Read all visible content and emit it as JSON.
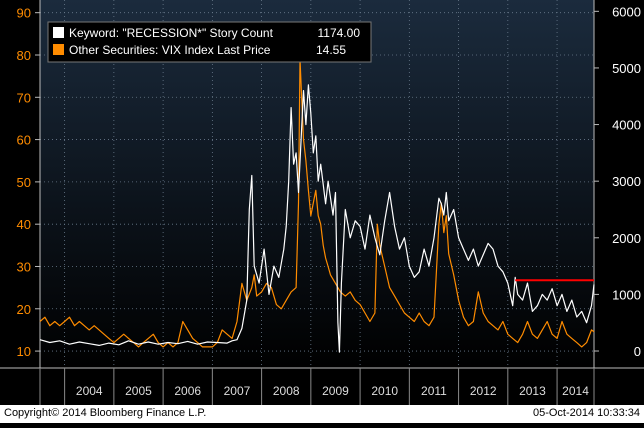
{
  "chart_data": {
    "type": "line",
    "copyright": "Copyright© 2014 Bloomberg Finance L.P.",
    "timestamp": "05-Oct-2014 10:33:34",
    "x_tick_labels": [
      "2004",
      "2005",
      "2006",
      "2007",
      "2008",
      "2009",
      "2010",
      "2011",
      "2012",
      "2013",
      "2014"
    ],
    "xlim": [
      2003.5,
      2014.75
    ],
    "left_axis": {
      "ticks": [
        10,
        20,
        30,
        40,
        50,
        60,
        70,
        80,
        90
      ],
      "ylim": [
        6,
        93
      ],
      "color": "#ff8c00"
    },
    "right_axis": {
      "ticks": [
        0,
        1000,
        2000,
        3000,
        4000,
        5000,
        6000
      ],
      "ylim": [
        -300,
        6200
      ],
      "color": "#ffffff"
    },
    "legend": {
      "location": "top-left",
      "entries": [
        {
          "label": "Keyword: \"RECESSION*\" Story Count",
          "value": "1174.00",
          "color": "#ffffff"
        },
        {
          "label": "Other Securities: VIX Index Last Price",
          "value": "14.55",
          "color": "#ff8c00"
        }
      ]
    },
    "series": [
      {
        "name": "Keyword: \"RECESSION*\" Story Count",
        "axis": "right",
        "color": "#ffffff",
        "points": [
          [
            2003.5,
            200
          ],
          [
            2003.7,
            150
          ],
          [
            2003.9,
            180
          ],
          [
            2004.1,
            120
          ],
          [
            2004.3,
            160
          ],
          [
            2004.5,
            130
          ],
          [
            2004.7,
            100
          ],
          [
            2004.9,
            140
          ],
          [
            2005.1,
            110
          ],
          [
            2005.3,
            180
          ],
          [
            2005.5,
            120
          ],
          [
            2005.7,
            160
          ],
          [
            2005.9,
            120
          ],
          [
            2006.1,
            150
          ],
          [
            2006.3,
            130
          ],
          [
            2006.5,
            170
          ],
          [
            2006.7,
            120
          ],
          [
            2006.9,
            160
          ],
          [
            2007.1,
            150
          ],
          [
            2007.3,
            140
          ],
          [
            2007.4,
            180
          ],
          [
            2007.5,
            200
          ],
          [
            2007.6,
            400
          ],
          [
            2007.7,
            900
          ],
          [
            2007.75,
            2500
          ],
          [
            2007.8,
            3100
          ],
          [
            2007.85,
            1500
          ],
          [
            2007.95,
            1200
          ],
          [
            2008.05,
            1800
          ],
          [
            2008.15,
            1000
          ],
          [
            2008.25,
            1500
          ],
          [
            2008.35,
            1300
          ],
          [
            2008.45,
            1800
          ],
          [
            2008.5,
            2200
          ],
          [
            2008.55,
            3000
          ],
          [
            2008.6,
            4300
          ],
          [
            2008.65,
            3300
          ],
          [
            2008.7,
            3500
          ],
          [
            2008.75,
            2800
          ],
          [
            2008.8,
            3700
          ],
          [
            2008.85,
            4600
          ],
          [
            2008.9,
            4000
          ],
          [
            2008.95,
            4700
          ],
          [
            2009.0,
            4200
          ],
          [
            2009.05,
            3500
          ],
          [
            2009.1,
            3800
          ],
          [
            2009.15,
            3000
          ],
          [
            2009.2,
            3300
          ],
          [
            2009.3,
            2600
          ],
          [
            2009.35,
            3000
          ],
          [
            2009.45,
            2400
          ],
          [
            2009.5,
            2800
          ],
          [
            2009.55,
            500
          ],
          [
            2009.58,
            -20
          ],
          [
            2009.62,
            1200
          ],
          [
            2009.7,
            2500
          ],
          [
            2009.8,
            2000
          ],
          [
            2009.9,
            2300
          ],
          [
            2010.0,
            2200
          ],
          [
            2010.1,
            1800
          ],
          [
            2010.2,
            2400
          ],
          [
            2010.3,
            2000
          ],
          [
            2010.4,
            1700
          ],
          [
            2010.5,
            2300
          ],
          [
            2010.6,
            2800
          ],
          [
            2010.7,
            2200
          ],
          [
            2010.8,
            1800
          ],
          [
            2010.9,
            2000
          ],
          [
            2011.0,
            1500
          ],
          [
            2011.1,
            1300
          ],
          [
            2011.2,
            1400
          ],
          [
            2011.3,
            1800
          ],
          [
            2011.4,
            1500
          ],
          [
            2011.5,
            2000
          ],
          [
            2011.6,
            2700
          ],
          [
            2011.65,
            2600
          ],
          [
            2011.7,
            2400
          ],
          [
            2011.75,
            2800
          ],
          [
            2011.8,
            2300
          ],
          [
            2011.9,
            2500
          ],
          [
            2012.0,
            2000
          ],
          [
            2012.1,
            1800
          ],
          [
            2012.2,
            1600
          ],
          [
            2012.3,
            1800
          ],
          [
            2012.4,
            1500
          ],
          [
            2012.5,
            1700
          ],
          [
            2012.6,
            1900
          ],
          [
            2012.7,
            1800
          ],
          [
            2012.8,
            1500
          ],
          [
            2012.9,
            1400
          ],
          [
            2013.0,
            1200
          ],
          [
            2013.1,
            800
          ],
          [
            2013.15,
            1300
          ],
          [
            2013.2,
            1000
          ],
          [
            2013.3,
            900
          ],
          [
            2013.4,
            1200
          ],
          [
            2013.5,
            700
          ],
          [
            2013.6,
            800
          ],
          [
            2013.7,
            1000
          ],
          [
            2013.8,
            900
          ],
          [
            2013.9,
            1100
          ],
          [
            2014.0,
            800
          ],
          [
            2014.1,
            1000
          ],
          [
            2014.2,
            700
          ],
          [
            2014.3,
            900
          ],
          [
            2014.4,
            600
          ],
          [
            2014.5,
            700
          ],
          [
            2014.6,
            500
          ],
          [
            2014.7,
            800
          ],
          [
            2014.75,
            1174
          ]
        ]
      },
      {
        "name": "Other Securities: VIX Index Last Price",
        "axis": "left",
        "color": "#ff8c00",
        "points": [
          [
            2003.5,
            17
          ],
          [
            2003.6,
            18
          ],
          [
            2003.7,
            16
          ],
          [
            2003.8,
            17
          ],
          [
            2003.9,
            16
          ],
          [
            2004.0,
            17
          ],
          [
            2004.1,
            18
          ],
          [
            2004.2,
            16
          ],
          [
            2004.3,
            17
          ],
          [
            2004.4,
            16
          ],
          [
            2004.5,
            15
          ],
          [
            2004.6,
            16
          ],
          [
            2004.7,
            15
          ],
          [
            2004.8,
            14
          ],
          [
            2004.9,
            13
          ],
          [
            2005.0,
            12
          ],
          [
            2005.1,
            13
          ],
          [
            2005.2,
            14
          ],
          [
            2005.3,
            13
          ],
          [
            2005.4,
            12
          ],
          [
            2005.5,
            11
          ],
          [
            2005.6,
            12
          ],
          [
            2005.7,
            13
          ],
          [
            2005.8,
            14
          ],
          [
            2005.9,
            12
          ],
          [
            2006.0,
            11
          ],
          [
            2006.1,
            12
          ],
          [
            2006.2,
            11
          ],
          [
            2006.3,
            12
          ],
          [
            2006.4,
            17
          ],
          [
            2006.5,
            15
          ],
          [
            2006.6,
            13
          ],
          [
            2006.7,
            12
          ],
          [
            2006.8,
            11
          ],
          [
            2006.9,
            11
          ],
          [
            2007.0,
            11
          ],
          [
            2007.1,
            12
          ],
          [
            2007.2,
            15
          ],
          [
            2007.3,
            14
          ],
          [
            2007.4,
            13
          ],
          [
            2007.5,
            17
          ],
          [
            2007.6,
            26
          ],
          [
            2007.7,
            22
          ],
          [
            2007.8,
            25
          ],
          [
            2007.85,
            28
          ],
          [
            2007.9,
            23
          ],
          [
            2008.0,
            24
          ],
          [
            2008.1,
            26
          ],
          [
            2008.2,
            25
          ],
          [
            2008.3,
            21
          ],
          [
            2008.4,
            20
          ],
          [
            2008.5,
            22
          ],
          [
            2008.6,
            24
          ],
          [
            2008.7,
            25
          ],
          [
            2008.75,
            45
          ],
          [
            2008.78,
            79
          ],
          [
            2008.82,
            68
          ],
          [
            2008.85,
            60
          ],
          [
            2008.9,
            55
          ],
          [
            2008.95,
            48
          ],
          [
            2009.0,
            42
          ],
          [
            2009.05,
            45
          ],
          [
            2009.1,
            48
          ],
          [
            2009.15,
            42
          ],
          [
            2009.2,
            40
          ],
          [
            2009.25,
            35
          ],
          [
            2009.3,
            32
          ],
          [
            2009.35,
            30
          ],
          [
            2009.4,
            28
          ],
          [
            2009.5,
            26
          ],
          [
            2009.6,
            24
          ],
          [
            2009.7,
            23
          ],
          [
            2009.8,
            24
          ],
          [
            2009.9,
            22
          ],
          [
            2010.0,
            21
          ],
          [
            2010.1,
            19
          ],
          [
            2010.2,
            17
          ],
          [
            2010.3,
            19
          ],
          [
            2010.35,
            40
          ],
          [
            2010.4,
            35
          ],
          [
            2010.5,
            30
          ],
          [
            2010.6,
            25
          ],
          [
            2010.7,
            23
          ],
          [
            2010.8,
            21
          ],
          [
            2010.9,
            19
          ],
          [
            2011.0,
            18
          ],
          [
            2011.1,
            17
          ],
          [
            2011.2,
            19
          ],
          [
            2011.3,
            17
          ],
          [
            2011.4,
            16
          ],
          [
            2011.5,
            18
          ],
          [
            2011.6,
            40
          ],
          [
            2011.65,
            45
          ],
          [
            2011.7,
            38
          ],
          [
            2011.75,
            42
          ],
          [
            2011.8,
            33
          ],
          [
            2011.9,
            28
          ],
          [
            2012.0,
            22
          ],
          [
            2012.1,
            18
          ],
          [
            2012.2,
            16
          ],
          [
            2012.3,
            17
          ],
          [
            2012.4,
            24
          ],
          [
            2012.5,
            19
          ],
          [
            2012.6,
            17
          ],
          [
            2012.7,
            16
          ],
          [
            2012.8,
            15
          ],
          [
            2012.9,
            17
          ],
          [
            2013.0,
            14
          ],
          [
            2013.1,
            13
          ],
          [
            2013.2,
            12
          ],
          [
            2013.3,
            14
          ],
          [
            2013.4,
            17
          ],
          [
            2013.5,
            14
          ],
          [
            2013.6,
            13
          ],
          [
            2013.7,
            15
          ],
          [
            2013.8,
            17
          ],
          [
            2013.9,
            14
          ],
          [
            2014.0,
            13
          ],
          [
            2014.1,
            17
          ],
          [
            2014.2,
            14
          ],
          [
            2014.3,
            13
          ],
          [
            2014.4,
            12
          ],
          [
            2014.5,
            11
          ],
          [
            2014.6,
            12
          ],
          [
            2014.7,
            15
          ],
          [
            2014.75,
            14.55
          ]
        ]
      }
    ],
    "annotations": [
      {
        "type": "horizontal-line",
        "color": "#ff0000",
        "axis": "right",
        "y": 1250,
        "x_start": 2013.15,
        "x_end": 2014.75
      }
    ]
  }
}
